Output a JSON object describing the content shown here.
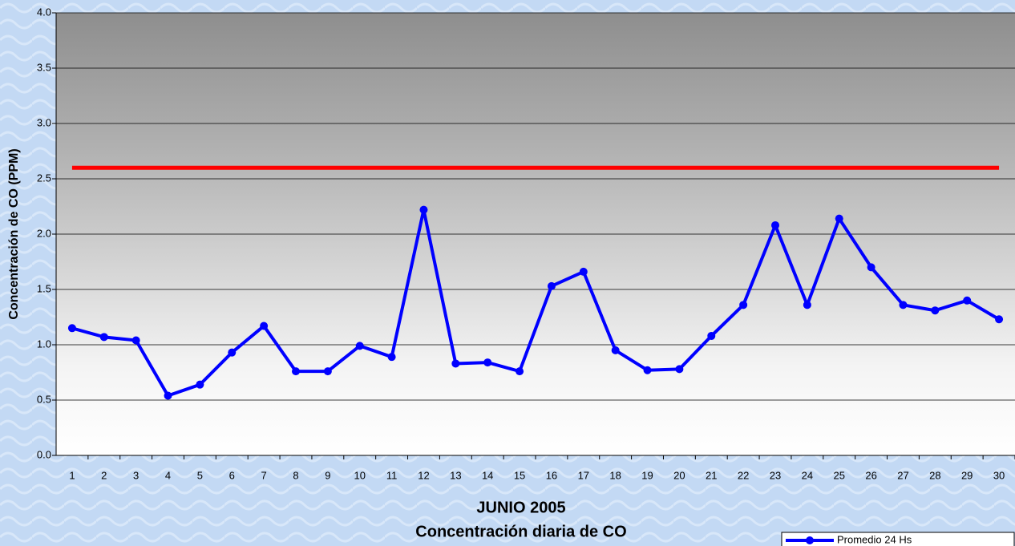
{
  "chart_data": {
    "type": "line",
    "title": "JUNIO 2005",
    "subtitle": "Concentración diaria de CO",
    "y_label": "Concentración de CO (PPM)",
    "categories": [
      "1",
      "2",
      "3",
      "4",
      "5",
      "6",
      "7",
      "8",
      "9",
      "10",
      "11",
      "12",
      "13",
      "14",
      "15",
      "16",
      "17",
      "18",
      "19",
      "20",
      "21",
      "22",
      "23",
      "24",
      "25",
      "26",
      "27",
      "28",
      "29",
      "30"
    ],
    "series": [
      {
        "name": "Promedio 24 Hs",
        "color": "#0000ff",
        "values": [
          1.15,
          1.07,
          1.04,
          0.54,
          0.64,
          0.93,
          1.17,
          0.76,
          0.76,
          0.99,
          0.89,
          2.22,
          0.83,
          0.84,
          0.76,
          1.53,
          1.66,
          0.95,
          0.77,
          0.78,
          1.08,
          1.36,
          2.08,
          1.36,
          2.14,
          1.7,
          1.36,
          1.31,
          1.4,
          1.23
        ]
      }
    ],
    "reference_line": {
      "value": 2.6,
      "color": "#ff0000"
    },
    "ylim": [
      0,
      4
    ],
    "yticks": [
      {
        "value": 0,
        "label": "0.0"
      },
      0.5,
      {
        "value": 1,
        "label": "1.0"
      },
      1.5,
      {
        "value": 2,
        "label": "2.0"
      },
      2.5,
      {
        "value": 3,
        "label": "3.0"
      },
      3.5,
      {
        "value": 4,
        "label": "4.0"
      }
    ],
    "grid": true,
    "legend": "bottom-right"
  }
}
